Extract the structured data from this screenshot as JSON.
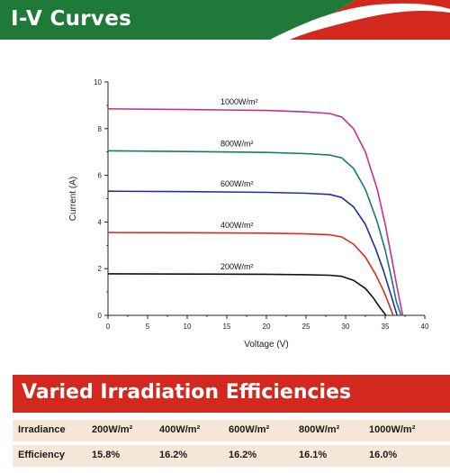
{
  "header": {
    "title": "I-V Curves",
    "colors": {
      "green": "#1f7a3a",
      "red": "#d2281e",
      "white": "#ffffff"
    }
  },
  "chart_data": {
    "type": "line",
    "xlabel": "Voltage (V)",
    "ylabel": "Current (A)",
    "xlim": [
      0,
      40
    ],
    "ylim": [
      0,
      10
    ],
    "xticks": [
      "0",
      "5",
      "10",
      "15",
      "20",
      "25",
      "30",
      "35",
      "40"
    ],
    "yticks": [
      "0",
      "2",
      "4",
      "6",
      "8",
      "10"
    ],
    "grid": false,
    "series": [
      {
        "name": "1000W/m²",
        "color": "#c0309a",
        "points": [
          [
            0,
            8.85
          ],
          [
            10,
            8.82
          ],
          [
            20,
            8.78
          ],
          [
            25,
            8.72
          ],
          [
            28,
            8.65
          ],
          [
            29.5,
            8.5
          ],
          [
            31,
            8.0
          ],
          [
            32.5,
            7.0
          ],
          [
            34,
            5.4
          ],
          [
            35,
            3.9
          ],
          [
            35.8,
            2.5
          ],
          [
            36.5,
            1.2
          ],
          [
            37.2,
            0
          ]
        ]
      },
      {
        "name": "800W/m²",
        "color": "#137a78",
        "points": [
          [
            0,
            7.05
          ],
          [
            10,
            7.02
          ],
          [
            20,
            6.98
          ],
          [
            25,
            6.93
          ],
          [
            28,
            6.87
          ],
          [
            29.5,
            6.75
          ],
          [
            31,
            6.3
          ],
          [
            32.5,
            5.4
          ],
          [
            34,
            4.0
          ],
          [
            35,
            2.8
          ],
          [
            35.8,
            1.6
          ],
          [
            36.4,
            0.6
          ],
          [
            37.0,
            0
          ]
        ]
      },
      {
        "name": "600W/m²",
        "color": "#1f2fa0",
        "points": [
          [
            0,
            5.32
          ],
          [
            10,
            5.3
          ],
          [
            20,
            5.27
          ],
          [
            25,
            5.23
          ],
          [
            28,
            5.18
          ],
          [
            29.5,
            5.05
          ],
          [
            31,
            4.65
          ],
          [
            32.5,
            3.9
          ],
          [
            33.8,
            2.85
          ],
          [
            34.8,
            1.9
          ],
          [
            35.7,
            0.9
          ],
          [
            36.5,
            0
          ]
        ]
      },
      {
        "name": "400W/m²",
        "color": "#e0281e",
        "points": [
          [
            0,
            3.55
          ],
          [
            10,
            3.54
          ],
          [
            20,
            3.52
          ],
          [
            25,
            3.49
          ],
          [
            28,
            3.45
          ],
          [
            29.5,
            3.36
          ],
          [
            31,
            3.05
          ],
          [
            32.5,
            2.5
          ],
          [
            33.8,
            1.75
          ],
          [
            34.8,
            1.05
          ],
          [
            35.5,
            0.45
          ],
          [
            36.0,
            0
          ]
        ]
      },
      {
        "name": "200W/m²",
        "color": "#111111",
        "points": [
          [
            0,
            1.78
          ],
          [
            10,
            1.77
          ],
          [
            20,
            1.76
          ],
          [
            25,
            1.74
          ],
          [
            28,
            1.72
          ],
          [
            29.5,
            1.67
          ],
          [
            31,
            1.5
          ],
          [
            32.5,
            1.15
          ],
          [
            33.5,
            0.75
          ],
          [
            34.3,
            0.35
          ],
          [
            35.1,
            0
          ]
        ]
      }
    ]
  },
  "section": {
    "title": "Varied Irradiation Efficiencies"
  },
  "table": {
    "rows": [
      {
        "label": "Irradiance",
        "values": [
          "200W/m²",
          "400W/m²",
          "600W/m²",
          "800W/m²",
          "1000W/m²"
        ]
      },
      {
        "label": "Efficiency",
        "values": [
          "15.8%",
          "16.2%",
          "16.2%",
          "16.1%",
          "16.0%"
        ]
      }
    ]
  }
}
